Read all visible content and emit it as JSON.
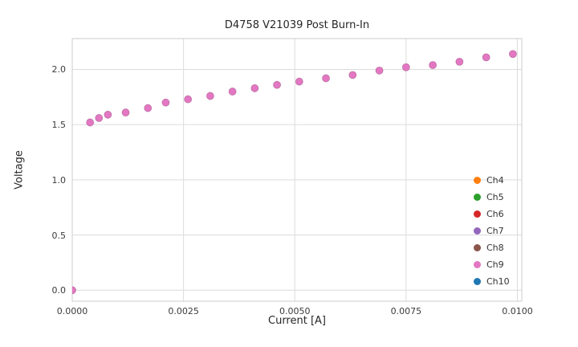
{
  "chart_data": {
    "type": "scatter",
    "title": "D4758 V21039 Post Burn-In",
    "xlabel": "Current [A]",
    "ylabel": "Voltage",
    "xlim": [
      0,
      0.0101
    ],
    "ylim": [
      -0.1,
      2.28
    ],
    "xticks": [
      "0.0000",
      "0.0025",
      "0.0050",
      "0.0075",
      "0.0100"
    ],
    "yticks": [
      "0.0",
      "0.5",
      "1.0",
      "1.5",
      "2.0"
    ],
    "grid": true,
    "legend_position": "lower right",
    "marker_color": "#e377c2",
    "marker_edge_color": "#a85c92",
    "grid_color": "#dcdcdc",
    "overlapping_series": true,
    "legend": [
      {
        "label": "Ch4",
        "color": "#ff7f0e"
      },
      {
        "label": "Ch5",
        "color": "#2ca02c"
      },
      {
        "label": "Ch6",
        "color": "#d62728"
      },
      {
        "label": "Ch7",
        "color": "#9467bd"
      },
      {
        "label": "Ch8",
        "color": "#8c564b"
      },
      {
        "label": "Ch9",
        "color": "#e377c2"
      },
      {
        "label": "Ch10",
        "color": "#1f77b4"
      }
    ],
    "x": [
      0.0,
      0.0004,
      0.0006,
      0.0008,
      0.0012,
      0.0017,
      0.0021,
      0.0026,
      0.0031,
      0.0036,
      0.0041,
      0.0046,
      0.0051,
      0.0057,
      0.0063,
      0.0069,
      0.0075,
      0.0081,
      0.0087,
      0.0093,
      0.0099
    ],
    "y": [
      0.0,
      1.52,
      1.56,
      1.59,
      1.61,
      1.65,
      1.7,
      1.73,
      1.76,
      1.8,
      1.83,
      1.86,
      1.89,
      1.92,
      1.95,
      1.99,
      2.02,
      2.04,
      2.07,
      2.11,
      2.14
    ]
  }
}
